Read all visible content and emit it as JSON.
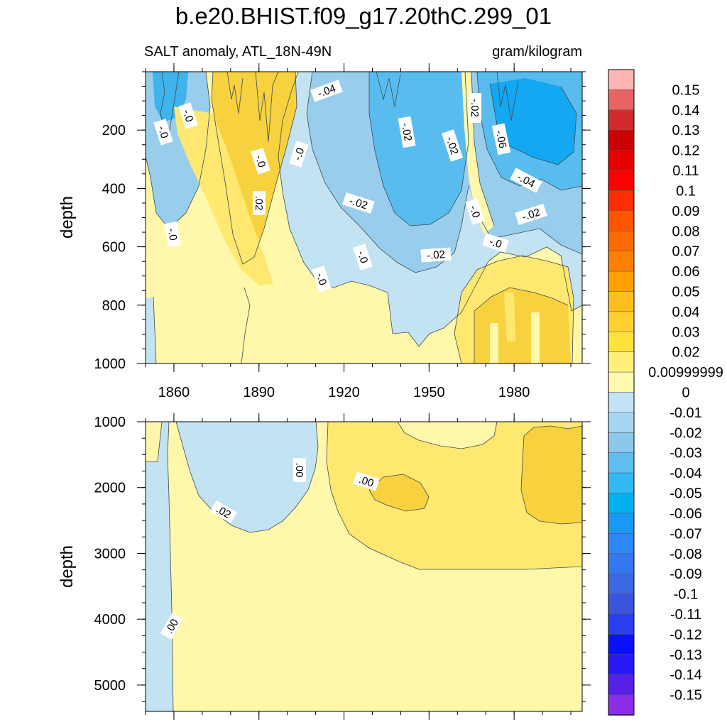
{
  "title": "b.e20.BHIST.f09_g17.20thC.299_01",
  "chart_data": [
    {
      "type": "heatmap",
      "panel": "upper",
      "left_string": "SALT anomaly, ATL_18N-49N",
      "right_string": "gram/kilogram",
      "ylabel": "depth",
      "xlabel": "",
      "y_reversed": true,
      "xlim": [
        1850,
        2004
      ],
      "ylim": [
        0,
        1000
      ],
      "x_ticks": [
        1860,
        1890,
        1920,
        1950,
        1980
      ],
      "y_ticks": [
        200,
        400,
        600,
        800,
        1000
      ],
      "contour_labels": [
        "-.04",
        "-.02",
        "-.02",
        "-.02",
        "-.06",
        "-.04",
        "-.02",
        "-.02",
        "-.02",
        "-.0",
        "-.0",
        "-.0",
        "-.0",
        "-.0",
        "-.0",
        ".02",
        "-.0",
        "-.0",
        "-.0"
      ]
    },
    {
      "type": "heatmap",
      "panel": "lower",
      "ylabel": "depth",
      "xlabel": "",
      "y_reversed": true,
      "xlim": [
        1850,
        2004
      ],
      "ylim": [
        1000,
        5400
      ],
      "x_ticks": [
        1860,
        1890,
        1920,
        1950,
        1980
      ],
      "y_ticks": [
        1000,
        2000,
        3000,
        4000,
        5000
      ],
      "contour_labels": [
        ".00",
        ".00",
        ".02",
        ".00"
      ]
    }
  ],
  "colorbar": {
    "levels": [
      "0.15",
      "0.14",
      "0.13",
      "0.12",
      "0.11",
      "0.1",
      "0.09",
      "0.08",
      "0.07",
      "0.06",
      "0.05",
      "0.04",
      "0.03",
      "0.02",
      "0.00999999",
      "0",
      "-0.01",
      "-0.02",
      "-0.03",
      "-0.04",
      "-0.05",
      "-0.06",
      "-0.07",
      "-0.08",
      "-0.09",
      "-0.1",
      "-0.11",
      "-0.12",
      "-0.13",
      "-0.14",
      "-0.15"
    ],
    "colors": [
      "#ffb3b3",
      "#e86464",
      "#d22a2a",
      "#cc0000",
      "#e60000",
      "#ff0000",
      "#ff2d00",
      "#ff5500",
      "#ff6a00",
      "#ff8000",
      "#ffa000",
      "#ffbe1e",
      "#ffd030",
      "#ffe23c",
      "#fff07a",
      "#fff9b0",
      "#c2e4f4",
      "#a6d6f0",
      "#8bc8ec",
      "#5ebff0",
      "#33b9f4",
      "#00b0f0",
      "#1a98f8",
      "#2c88f8",
      "#3478ef",
      "#3a68e2",
      "#3a55dc",
      "#2a3ef0",
      "#0a10fb",
      "#2818f6",
      "#5520e8",
      "#8a2ee8"
    ]
  },
  "colors": {
    "neg_light": "#c3e3f2",
    "neg_mid": "#98cdeb",
    "neg_strong": "#3fb3ec",
    "neg_deep": "#1598f2",
    "pos_light": "#fff7aa",
    "pos_mid": "#ffe870",
    "pos_strong": "#f7d23e"
  }
}
